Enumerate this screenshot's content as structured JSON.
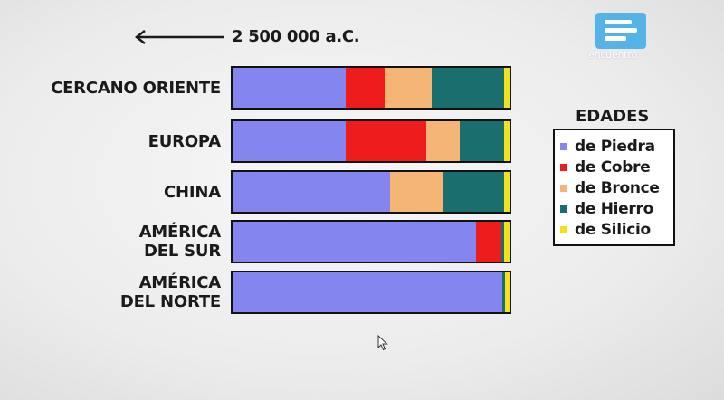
{
  "header": {
    "date_label": "2 500 000 a.C."
  },
  "logo": {
    "text": "encuentro"
  },
  "chart_data": {
    "type": "bar",
    "orientation": "horizontal",
    "stacked": true,
    "categories": [
      "CERCANO ORIENTE",
      "EUROPA",
      "CHINA",
      "AMÉRICA DEL SUR",
      "AMÉRICA DEL NORTE"
    ],
    "category_lines": [
      [
        "CERCANO ORIENTE"
      ],
      [
        "EUROPA"
      ],
      [
        "CHINA"
      ],
      [
        "AMÉRICA",
        "DEL SUR"
      ],
      [
        "AMÉRICA",
        "DEL NORTE"
      ]
    ],
    "legend_title": "EDADES",
    "legend_position": "right",
    "series": [
      {
        "name": "de Piedra",
        "color": "#8585f0",
        "values": [
          41,
          41,
          57,
          88,
          97.5
        ]
      },
      {
        "name": "de Cobre",
        "color": "#ee1c1c",
        "values": [
          14,
          29,
          0,
          9,
          0
        ]
      },
      {
        "name": "de Bronce",
        "color": "#f5b577",
        "values": [
          17,
          12,
          19,
          0,
          0
        ]
      },
      {
        "name": "de Hierro",
        "color": "#1a6e6e",
        "values": [
          26,
          16,
          22,
          1,
          1
        ]
      },
      {
        "name": "de Silicio",
        "color": "#f2e21a",
        "values": [
          2,
          2,
          2,
          2,
          1.5
        ]
      }
    ],
    "xlim": [
      0,
      100
    ]
  }
}
